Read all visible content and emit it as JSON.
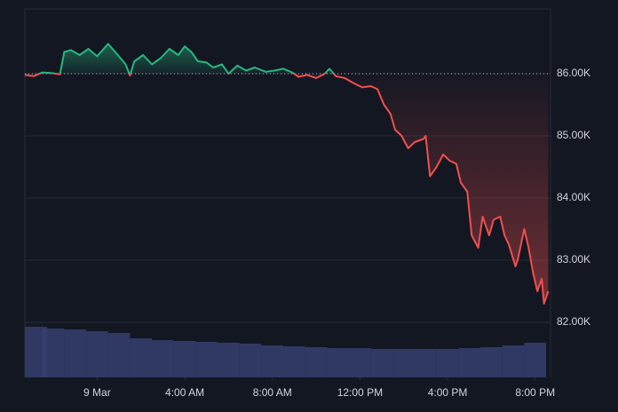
{
  "chart_data": {
    "type": "baseline",
    "x": [
      -3.3,
      -2.9,
      -2.5,
      -2.1,
      -1.7,
      -1.5,
      -1.2,
      -0.8,
      -0.4,
      0,
      0.5,
      0.9,
      1.3,
      1.5,
      1.7,
      2.1,
      2.5,
      2.9,
      3.3,
      3.7,
      4.0,
      4.3,
      4.6,
      5.0,
      5.3,
      5.7,
      6.0,
      6.4,
      6.8,
      7.2,
      7.7,
      8.1,
      8.5,
      8.9,
      9.2,
      9.6,
      10.0,
      10.4,
      10.6,
      10.9,
      11.3,
      11.7,
      12.1,
      12.5,
      12.8,
      13.1,
      13.4,
      13.6,
      13.9,
      14.2,
      14.5,
      14.9,
      15.0,
      15.2,
      15.5,
      15.8,
      16.1,
      16.4,
      16.6,
      16.9,
      17.1,
      17.4,
      17.6,
      17.9,
      18.1,
      18.4,
      18.6,
      18.8,
      19.1,
      19.2,
      19.5,
      19.7,
      19.9,
      20.1,
      20.3,
      20.4,
      20.6
    ],
    "series": [
      {
        "values": [
          85980,
          85960,
          86020,
          86010,
          85990,
          86350,
          86380,
          86300,
          86400,
          86280,
          86480,
          86320,
          86150,
          85970,
          86200,
          86300,
          86150,
          86250,
          86400,
          86300,
          86440,
          86350,
          86200,
          86180,
          86100,
          86150,
          86000,
          86130,
          86050,
          86100,
          86030,
          86050,
          86080,
          86020,
          85950,
          85980,
          85930,
          86000,
          86080,
          85960,
          85930,
          85850,
          85780,
          85800,
          85750,
          85500,
          85350,
          85100,
          85000,
          84800,
          84900,
          84950,
          85000,
          84350,
          84500,
          84700,
          84600,
          84550,
          84250,
          84100,
          83400,
          83200,
          83700,
          83400,
          83650,
          83700,
          83400,
          83250,
          82900,
          83000,
          83500,
          83200,
          82800,
          82500,
          82700,
          82300,
          82500
        ]
      }
    ],
    "baseline": 86000,
    "up_color": "#26b67f",
    "down_color": "#ef4f4f",
    "volume": {
      "x": [
        -3,
        -2,
        -1,
        0,
        1,
        2,
        3,
        4,
        5,
        6,
        7,
        8,
        9,
        10,
        11,
        12,
        13,
        14,
        15,
        16,
        17,
        18,
        19,
        20
      ],
      "values": [
        57,
        55,
        54,
        52,
        50,
        44,
        42,
        41,
        40,
        39,
        38,
        36,
        35,
        34,
        33,
        33,
        32,
        32,
        32,
        32,
        33,
        34,
        36,
        39
      ],
      "color": "#36406e"
    },
    "xlim": [
      -3.3,
      20.7
    ],
    "xticks": [
      {
        "value": 0,
        "label": "9 Mar"
      },
      {
        "value": 4,
        "label": "4:00 AM"
      },
      {
        "value": 8,
        "label": "8:00 AM"
      },
      {
        "value": 12,
        "label": "12:00 PM"
      },
      {
        "value": 16,
        "label": "4:00 PM"
      },
      {
        "value": 20,
        "label": "8:00 PM"
      }
    ],
    "ylim": [
      81114,
      87043
    ],
    "yticks": [
      {
        "value": 82000,
        "label": "82.00K"
      },
      {
        "value": 83000,
        "label": "83.00K"
      },
      {
        "value": 84000,
        "label": "84.00K"
      },
      {
        "value": 85000,
        "label": "85.00K"
      },
      {
        "value": 86000,
        "label": "86.00K"
      }
    ],
    "grid": true
  }
}
